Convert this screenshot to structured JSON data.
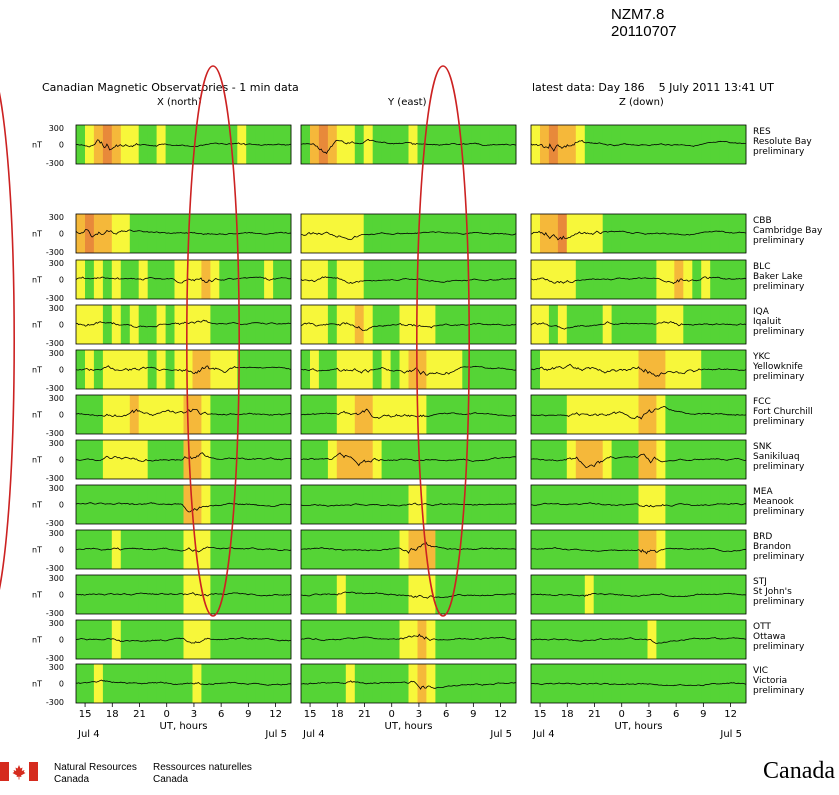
{
  "annotation": {
    "event": "NZM7.8",
    "date": "20110707"
  },
  "header": {
    "title": "Canadian Magnetic Observatories - 1 min data",
    "latest_prefix": "latest data:",
    "latest_day": "Day 186",
    "latest_datetime": "5 July 2011 13:41 UT"
  },
  "chart_data": {
    "type": "line",
    "components": [
      "X (north)",
      "Y (east)",
      "Z (down)"
    ],
    "y_unit": "nT",
    "ylim": [
      -300,
      300
    ],
    "y_ticks": [
      "300",
      "0",
      "-300"
    ],
    "x_ticks": [
      "15",
      "18",
      "21",
      "0",
      "3",
      "6",
      "9",
      "12"
    ],
    "x_date_start": "Jul 4",
    "x_date_end": "Jul 5",
    "xlabel": "UT, hours",
    "x_range_hours": [
      14,
      37.7
    ],
    "activity_colors": {
      "quiet": "#55d436",
      "moderate": "#f7f73a",
      "active": "#f5b83a",
      "storm": "#e8893a"
    },
    "highlight_ellipse": {
      "color": "#cc2222",
      "x_hours": [
        3.4,
        5.2
      ]
    },
    "stations": [
      {
        "code": "RES",
        "name": "Resolute Bay",
        "status": "preliminary",
        "activity": [
          [
            "q",
            "m",
            "a",
            "s",
            "a",
            "m",
            "m",
            "q",
            "q",
            "m",
            "q",
            "q",
            "q",
            "q",
            "q",
            "q",
            "q",
            "q",
            "m",
            "q",
            "q",
            "q",
            "q",
            "q"
          ],
          [
            "q",
            "a",
            "s",
            "a",
            "m",
            "m",
            "q",
            "m",
            "q",
            "q",
            "q",
            "q",
            "m",
            "q",
            "q",
            "q",
            "q",
            "q",
            "q",
            "q",
            "q",
            "q",
            "q",
            "q"
          ],
          [
            "m",
            "a",
            "s",
            "a",
            "a",
            "m",
            "q",
            "q",
            "q",
            "q",
            "q",
            "q",
            "q",
            "q",
            "q",
            "q",
            "q",
            "q",
            "q",
            "q",
            "q",
            "q",
            "q",
            "q"
          ]
        ]
      },
      {
        "code": "CBB",
        "name": "Cambridge Bay",
        "status": "preliminary",
        "activity": [
          [
            "a",
            "s",
            "a",
            "a",
            "m",
            "m",
            "q",
            "q",
            "q",
            "q",
            "q",
            "q",
            "q",
            "q",
            "q",
            "q",
            "q",
            "q",
            "q",
            "q",
            "q",
            "q",
            "q",
            "q"
          ],
          [
            "m",
            "m",
            "m",
            "m",
            "m",
            "m",
            "m",
            "q",
            "q",
            "q",
            "q",
            "q",
            "q",
            "q",
            "q",
            "q",
            "q",
            "q",
            "q",
            "q",
            "q",
            "q",
            "q",
            "q"
          ],
          [
            "m",
            "a",
            "a",
            "s",
            "m",
            "m",
            "m",
            "m",
            "q",
            "q",
            "q",
            "q",
            "q",
            "q",
            "q",
            "q",
            "q",
            "q",
            "q",
            "q",
            "q",
            "q",
            "q",
            "q"
          ]
        ]
      },
      {
        "code": "BLC",
        "name": "Baker Lake",
        "status": "preliminary",
        "activity": [
          [
            "m",
            "q",
            "m",
            "q",
            "m",
            "q",
            "q",
            "m",
            "q",
            "q",
            "q",
            "m",
            "m",
            "m",
            "a",
            "m",
            "q",
            "q",
            "q",
            "q",
            "q",
            "m",
            "q",
            "q"
          ],
          [
            "m",
            "m",
            "m",
            "q",
            "m",
            "m",
            "m",
            "q",
            "q",
            "q",
            "q",
            "q",
            "q",
            "q",
            "q",
            "q",
            "q",
            "q",
            "q",
            "q",
            "q",
            "q",
            "q",
            "q"
          ],
          [
            "m",
            "m",
            "m",
            "m",
            "m",
            "q",
            "q",
            "q",
            "q",
            "q",
            "q",
            "q",
            "q",
            "q",
            "m",
            "m",
            "a",
            "m",
            "q",
            "m",
            "q",
            "q",
            "q",
            "q"
          ]
        ]
      },
      {
        "code": "IQA",
        "name": "Iqaluit",
        "status": "preliminary",
        "activity": [
          [
            "m",
            "m",
            "m",
            "q",
            "m",
            "q",
            "m",
            "q",
            "q",
            "m",
            "q",
            "m",
            "m",
            "m",
            "m",
            "q",
            "q",
            "q",
            "q",
            "q",
            "q",
            "q",
            "q",
            "q"
          ],
          [
            "m",
            "m",
            "m",
            "q",
            "m",
            "m",
            "a",
            "m",
            "q",
            "q",
            "q",
            "m",
            "m",
            "m",
            "m",
            "q",
            "q",
            "q",
            "q",
            "q",
            "q",
            "q",
            "q",
            "q"
          ],
          [
            "m",
            "m",
            "q",
            "m",
            "q",
            "q",
            "q",
            "q",
            "m",
            "q",
            "q",
            "q",
            "q",
            "q",
            "m",
            "m",
            "m",
            "q",
            "q",
            "q",
            "q",
            "q",
            "q",
            "q"
          ]
        ]
      },
      {
        "code": "YKC",
        "name": "Yellowknife",
        "status": "preliminary",
        "activity": [
          [
            "q",
            "m",
            "q",
            "m",
            "m",
            "m",
            "m",
            "m",
            "q",
            "m",
            "q",
            "m",
            "m",
            "a",
            "a",
            "m",
            "m",
            "m",
            "q",
            "q",
            "q",
            "q",
            "q",
            "q"
          ],
          [
            "q",
            "m",
            "q",
            "q",
            "m",
            "m",
            "m",
            "m",
            "q",
            "m",
            "q",
            "m",
            "a",
            "a",
            "m",
            "m",
            "m",
            "m",
            "q",
            "q",
            "q",
            "q",
            "q",
            "q"
          ],
          [
            "q",
            "m",
            "m",
            "m",
            "m",
            "m",
            "m",
            "m",
            "m",
            "m",
            "m",
            "m",
            "a",
            "a",
            "a",
            "m",
            "m",
            "m",
            "m",
            "q",
            "q",
            "q",
            "q",
            "q"
          ]
        ]
      },
      {
        "code": "FCC",
        "name": "Fort Churchill",
        "status": "preliminary",
        "activity": [
          [
            "q",
            "q",
            "q",
            "m",
            "m",
            "m",
            "a",
            "m",
            "m",
            "m",
            "m",
            "m",
            "a",
            "a",
            "m",
            "q",
            "q",
            "q",
            "q",
            "q",
            "q",
            "q",
            "q",
            "q"
          ],
          [
            "q",
            "q",
            "q",
            "q",
            "m",
            "m",
            "a",
            "a",
            "m",
            "m",
            "m",
            "m",
            "m",
            "m",
            "q",
            "q",
            "q",
            "q",
            "q",
            "q",
            "q",
            "q",
            "q",
            "q"
          ],
          [
            "q",
            "q",
            "q",
            "q",
            "m",
            "m",
            "m",
            "m",
            "m",
            "m",
            "m",
            "m",
            "a",
            "a",
            "m",
            "q",
            "q",
            "q",
            "q",
            "q",
            "q",
            "q",
            "q",
            "q"
          ]
        ]
      },
      {
        "code": "SNK",
        "name": "Sanikiluaq",
        "status": "preliminary",
        "activity": [
          [
            "q",
            "q",
            "q",
            "m",
            "m",
            "m",
            "m",
            "m",
            "q",
            "q",
            "q",
            "q",
            "a",
            "a",
            "m",
            "q",
            "q",
            "q",
            "q",
            "q",
            "q",
            "q",
            "q",
            "q"
          ],
          [
            "q",
            "q",
            "q",
            "m",
            "a",
            "a",
            "a",
            "a",
            "m",
            "q",
            "q",
            "q",
            "q",
            "q",
            "q",
            "q",
            "q",
            "q",
            "q",
            "q",
            "q",
            "q",
            "q",
            "q"
          ],
          [
            "q",
            "q",
            "q",
            "q",
            "m",
            "a",
            "a",
            "a",
            "m",
            "q",
            "q",
            "q",
            "a",
            "a",
            "m",
            "q",
            "q",
            "q",
            "q",
            "q",
            "q",
            "q",
            "q",
            "q"
          ]
        ]
      },
      {
        "code": "MEA",
        "name": "Meanook",
        "status": "preliminary",
        "activity": [
          [
            "q",
            "q",
            "q",
            "q",
            "q",
            "q",
            "q",
            "q",
            "q",
            "q",
            "q",
            "q",
            "a",
            "a",
            "m",
            "q",
            "q",
            "q",
            "q",
            "q",
            "q",
            "q",
            "q",
            "q"
          ],
          [
            "q",
            "q",
            "q",
            "q",
            "q",
            "q",
            "q",
            "q",
            "q",
            "q",
            "q",
            "q",
            "m",
            "m",
            "q",
            "q",
            "q",
            "q",
            "q",
            "q",
            "q",
            "q",
            "q",
            "q"
          ],
          [
            "q",
            "q",
            "q",
            "q",
            "q",
            "q",
            "q",
            "q",
            "q",
            "q",
            "q",
            "q",
            "m",
            "m",
            "m",
            "q",
            "q",
            "q",
            "q",
            "q",
            "q",
            "q",
            "q",
            "q"
          ]
        ]
      },
      {
        "code": "BRD",
        "name": "Brandon",
        "status": "preliminary",
        "activity": [
          [
            "q",
            "q",
            "q",
            "q",
            "m",
            "q",
            "q",
            "q",
            "q",
            "q",
            "q",
            "q",
            "m",
            "m",
            "m",
            "q",
            "q",
            "q",
            "q",
            "q",
            "q",
            "q",
            "q",
            "q"
          ],
          [
            "q",
            "q",
            "q",
            "q",
            "q",
            "q",
            "q",
            "q",
            "q",
            "q",
            "q",
            "m",
            "a",
            "a",
            "a",
            "q",
            "q",
            "q",
            "q",
            "q",
            "q",
            "q",
            "q",
            "q"
          ],
          [
            "q",
            "q",
            "q",
            "q",
            "q",
            "q",
            "q",
            "q",
            "q",
            "q",
            "q",
            "q",
            "a",
            "a",
            "m",
            "q",
            "q",
            "q",
            "q",
            "q",
            "q",
            "q",
            "q",
            "q"
          ]
        ]
      },
      {
        "code": "STJ",
        "name": "St John's",
        "status": "preliminary",
        "activity": [
          [
            "q",
            "q",
            "q",
            "q",
            "q",
            "q",
            "q",
            "q",
            "q",
            "q",
            "q",
            "q",
            "m",
            "m",
            "m",
            "q",
            "q",
            "q",
            "q",
            "q",
            "q",
            "q",
            "q",
            "q"
          ],
          [
            "q",
            "q",
            "q",
            "q",
            "m",
            "q",
            "q",
            "q",
            "q",
            "q",
            "q",
            "q",
            "m",
            "m",
            "m",
            "q",
            "q",
            "q",
            "q",
            "q",
            "q",
            "q",
            "q",
            "q"
          ],
          [
            "q",
            "q",
            "q",
            "q",
            "q",
            "q",
            "m",
            "q",
            "q",
            "q",
            "q",
            "q",
            "q",
            "q",
            "q",
            "q",
            "q",
            "q",
            "q",
            "q",
            "q",
            "q",
            "q",
            "q"
          ]
        ]
      },
      {
        "code": "OTT",
        "name": "Ottawa",
        "status": "preliminary",
        "activity": [
          [
            "q",
            "q",
            "q",
            "q",
            "m",
            "q",
            "q",
            "q",
            "q",
            "q",
            "q",
            "q",
            "m",
            "m",
            "m",
            "q",
            "q",
            "q",
            "q",
            "q",
            "q",
            "q",
            "q",
            "q"
          ],
          [
            "q",
            "q",
            "q",
            "q",
            "q",
            "q",
            "q",
            "q",
            "q",
            "q",
            "q",
            "m",
            "m",
            "a",
            "m",
            "q",
            "q",
            "q",
            "q",
            "q",
            "q",
            "q",
            "q",
            "q"
          ],
          [
            "q",
            "q",
            "q",
            "q",
            "q",
            "q",
            "q",
            "q",
            "q",
            "q",
            "q",
            "q",
            "q",
            "m",
            "q",
            "q",
            "q",
            "q",
            "q",
            "q",
            "q",
            "q",
            "q",
            "q"
          ]
        ]
      },
      {
        "code": "VIC",
        "name": "Victoria",
        "status": "preliminary",
        "activity": [
          [
            "q",
            "q",
            "m",
            "q",
            "q",
            "q",
            "q",
            "q",
            "q",
            "q",
            "q",
            "q",
            "q",
            "m",
            "q",
            "q",
            "q",
            "q",
            "q",
            "q",
            "q",
            "q",
            "q",
            "q"
          ],
          [
            "q",
            "q",
            "q",
            "q",
            "q",
            "m",
            "q",
            "q",
            "q",
            "q",
            "q",
            "q",
            "m",
            "a",
            "m",
            "q",
            "q",
            "q",
            "q",
            "q",
            "q",
            "q",
            "q",
            "q"
          ],
          [
            "q",
            "q",
            "q",
            "q",
            "q",
            "q",
            "q",
            "q",
            "q",
            "q",
            "q",
            "q",
            "q",
            "q",
            "q",
            "q",
            "q",
            "q",
            "q",
            "q",
            "q",
            "q",
            "q",
            "q"
          ]
        ]
      }
    ]
  },
  "footer": {
    "nrcan_en_1": "Natural Resources",
    "nrcan_en_2": "Canada",
    "nrcan_fr_1": "Ressources naturelles",
    "nrcan_fr_2": "Canada",
    "wordmark": "Canada"
  }
}
